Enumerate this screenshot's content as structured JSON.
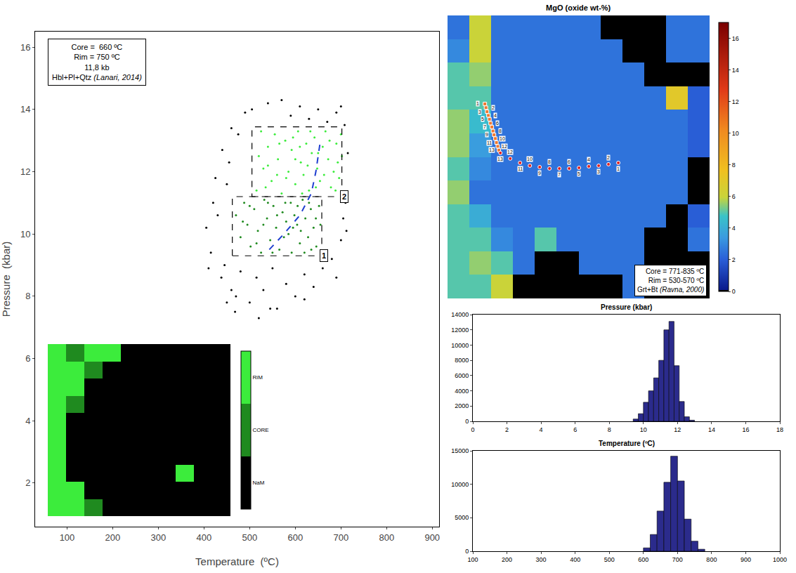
{
  "chart_data": [
    {
      "type": "scatter",
      "xlabel": "Temperature  (ºC)",
      "ylabel": "Pressure  (kbar)",
      "xlim": [
        30,
        915
      ],
      "ylim": [
        0.6,
        16.5
      ],
      "xticks": [
        100,
        200,
        300,
        400,
        500,
        600,
        700,
        800,
        900
      ],
      "yticks": [
        2,
        4,
        6,
        8,
        10,
        12,
        14,
        16
      ],
      "grid": false,
      "annotation": [
        "Core =  660 ºC",
        "Rim = 750 ºC",
        "11,8 kb",
        "Hbl+Pl+Qtz (Lanari, 2014)"
      ],
      "regions": [
        {
          "label": "1",
          "xlim": [
            462,
            658
          ],
          "ylim": [
            9.3,
            11.2
          ]
        },
        {
          "label": "2",
          "xlim": [
            505,
            702
          ],
          "ylim": [
            11.2,
            13.44
          ]
        }
      ],
      "series": [
        {
          "color": "#000000",
          "marker": "circle",
          "x": [
            405,
            415,
            420,
            430,
            438,
            445,
            450,
            455,
            460,
            468,
            475,
            480,
            490,
            500,
            505,
            515,
            520,
            530,
            540,
            550,
            560,
            570,
            580,
            590,
            600,
            610,
            620,
            630,
            640,
            650,
            660,
            670,
            680,
            690,
            700,
            705,
            710,
            712,
            708,
            715,
            700,
            440,
            460,
            425,
            470,
            620,
            545,
            410,
            690,
            450
          ],
          "y": [
            10.2,
            9.4,
            11.0,
            10.6,
            8.6,
            9.0,
            11.6,
            12.3,
            8.2,
            7.5,
            13.2,
            8.8,
            13.9,
            7.8,
            14.0,
            8.6,
            7.3,
            8.2,
            14.2,
            8.9,
            7.6,
            14.3,
            8.4,
            13.8,
            8.0,
            14.1,
            8.7,
            13.7,
            8.3,
            14.0,
            8.9,
            13.6,
            9.2,
            13.9,
            9.8,
            10.5,
            11.0,
            10.1,
            13.5,
            12.6,
            14.1,
            12.7,
            13.4,
            11.8,
            8.0,
            7.9,
            7.6,
            8.9,
            8.6,
            7.8
          ]
        },
        {
          "color": "#1f8a1f",
          "marker": "circle",
          "x": [
            470,
            480,
            488,
            495,
            502,
            510,
            518,
            525,
            532,
            538,
            545,
            552,
            558,
            565,
            572,
            578,
            585,
            592,
            598,
            604,
            610,
            616,
            622,
            628,
            634,
            640,
            646,
            652,
            500,
            530,
            560,
            590,
            620,
            645,
            515,
            575,
            605,
            635,
            485,
            550,
            595,
            655,
            540,
            580,
            612,
            630
          ],
          "y": [
            10.6,
            9.9,
            11.0,
            10.3,
            9.6,
            10.8,
            10.1,
            9.4,
            11.1,
            10.5,
            9.8,
            10.9,
            10.2,
            9.5,
            10.7,
            11.0,
            10.0,
            9.4,
            10.6,
            10.3,
            9.7,
            11.1,
            10.5,
            9.9,
            10.8,
            10.2,
            9.6,
            10.9,
            10.9,
            10.3,
            10.6,
            11.0,
            9.4,
            10.5,
            9.7,
            9.9,
            10.9,
            9.5,
            10.4,
            9.4,
            10.2,
            10.3,
            11.0,
            10.4,
            10.1,
            11.0
          ]
        },
        {
          "color": "#3cec3c",
          "marker": "circle",
          "x": [
            515,
            530,
            540,
            548,
            555,
            562,
            570,
            578,
            585,
            592,
            600,
            606,
            612,
            618,
            624,
            630,
            636,
            642,
            648,
            654,
            660,
            666,
            672,
            678,
            684,
            690,
            696,
            702,
            525,
            535,
            565,
            595,
            615,
            645,
            675,
            700,
            520,
            580,
            610,
            650,
            688,
            560,
            627,
            663,
            540,
            600,
            633,
            693
          ],
          "y": [
            11.4,
            12.1,
            12.8,
            11.7,
            13.2,
            12.4,
            11.3,
            13.0,
            12.0,
            12.7,
            11.6,
            13.3,
            12.3,
            11.9,
            12.9,
            11.4,
            12.6,
            13.1,
            12.1,
            11.7,
            12.8,
            13.3,
            12.4,
            11.5,
            12.0,
            12.9,
            11.8,
            12.5,
            13.3,
            11.5,
            12.9,
            13.1,
            11.3,
            11.5,
            13.0,
            13.2,
            12.5,
            11.8,
            12.8,
            12.6,
            11.4,
            11.9,
            12.2,
            11.9,
            12.2,
            12.4,
            13.3,
            12.3
          ]
        },
        {
          "type": "line",
          "color": "#1f3fd0",
          "line_style": "dash",
          "x": [
            543,
            575,
            610,
            635,
            645,
            654
          ],
          "y": [
            9.5,
            10.0,
            10.6,
            11.3,
            12.0,
            12.9
          ]
        }
      ]
    },
    {
      "type": "heatmap",
      "colors": [
        "#000000",
        "#1f8a1f",
        "#3cec3c"
      ],
      "zlim": [
        -0.5,
        2.5
      ],
      "zticks": [
        {
          "value": 0,
          "label": "NaM"
        },
        {
          "value": 1,
          "label": "CORE"
        },
        {
          "value": 2,
          "label": "RiM"
        }
      ],
      "z": [
        [
          2,
          1,
          2,
          2,
          0,
          0,
          0,
          0,
          0,
          0
        ],
        [
          2,
          2,
          1,
          0,
          0,
          0,
          0,
          0,
          0,
          0
        ],
        [
          2,
          2,
          0,
          0,
          0,
          0,
          0,
          0,
          0,
          0
        ],
        [
          2,
          1,
          0,
          0,
          0,
          0,
          0,
          0,
          0,
          0
        ],
        [
          2,
          0,
          0,
          0,
          0,
          0,
          0,
          0,
          0,
          0
        ],
        [
          2,
          0,
          0,
          0,
          0,
          0,
          0,
          0,
          0,
          0
        ],
        [
          2,
          0,
          0,
          0,
          0,
          0,
          0,
          0,
          0,
          0
        ],
        [
          2,
          0,
          0,
          0,
          0,
          0,
          0,
          2,
          0,
          0
        ],
        [
          2,
          2,
          0,
          0,
          0,
          0,
          0,
          0,
          0,
          0
        ],
        [
          2,
          2,
          1,
          0,
          0,
          0,
          0,
          0,
          0,
          0
        ]
      ]
    },
    {
      "type": "heatmap",
      "title": "MgO (oxide wt-%)",
      "zlim": [
        0,
        17
      ],
      "zticks": [
        0,
        2,
        4,
        6,
        8,
        10,
        12,
        14,
        16
      ],
      "annotation": [
        "Core = 771-835 ºC",
        "Rim = 530-570 ºC",
        "Grt+Bt (Ravna, 2000)"
      ],
      "z": [
        [
          2.5,
          6,
          2.5,
          2.5,
          2.5,
          2.5,
          2.5,
          0,
          0,
          0,
          2.5,
          2.5
        ],
        [
          3,
          6,
          2.5,
          2.5,
          2.5,
          2.5,
          2.5,
          2.5,
          0,
          0,
          2.5,
          2.5
        ],
        [
          5,
          5.5,
          2.5,
          2.5,
          2.5,
          2.5,
          2.5,
          2.5,
          2.5,
          0,
          0,
          0
        ],
        [
          5,
          5,
          2.5,
          2.5,
          2.5,
          2.5,
          2.5,
          2.5,
          2.5,
          2.5,
          7,
          2
        ],
        [
          5.5,
          4.5,
          2.5,
          2.5,
          2.5,
          2.5,
          2.5,
          2.5,
          2.5,
          2.5,
          2.5,
          2
        ],
        [
          5.5,
          3.5,
          2.5,
          2.5,
          2.5,
          2.5,
          2.5,
          2.5,
          2.5,
          2.5,
          2.5,
          2
        ],
        [
          5,
          3,
          2.5,
          2.5,
          2.5,
          2.5,
          2.5,
          2.5,
          2.5,
          2.5,
          2.5,
          0
        ],
        [
          5.5,
          2.5,
          2.5,
          2.5,
          2.5,
          2.5,
          2.5,
          2.5,
          2.5,
          2.5,
          2.5,
          0
        ],
        [
          5,
          4,
          2.5,
          2.5,
          2.5,
          2.5,
          2.5,
          2.5,
          2.5,
          2.5,
          0,
          2
        ],
        [
          5,
          5,
          3,
          2.5,
          5,
          2.5,
          2.5,
          2.5,
          2.5,
          0,
          0,
          2.5
        ],
        [
          5,
          5.5,
          5,
          2.5,
          0,
          0,
          2.5,
          2.5,
          2.5,
          0,
          0,
          0
        ],
        [
          5,
          5,
          6,
          0,
          0,
          0,
          0,
          0,
          2.5,
          0,
          0,
          0
        ]
      ],
      "traverses": [
        {
          "color": "#f07830",
          "marker": "square",
          "labels": [
            "1",
            "2",
            "3",
            "4",
            "5",
            "6",
            "7",
            "8",
            "9",
            "10",
            "11",
            "12",
            "13"
          ],
          "x": [
            1.21,
            1.26,
            1.31,
            1.37,
            1.42,
            1.47,
            1.53,
            1.58,
            1.63,
            1.69,
            1.74,
            1.8,
            1.85
          ],
          "y": [
            3.25,
            3.41,
            3.58,
            3.74,
            3.9,
            4.07,
            4.23,
            4.4,
            4.56,
            4.72,
            4.89,
            5.05,
            5.21
          ]
        },
        {
          "color": "#e02020",
          "marker": "circle",
          "labels": [
            "1",
            "2",
            "3",
            "4",
            "5",
            "6",
            "7",
            "8",
            "9",
            "10",
            "11",
            "12",
            "13"
          ],
          "x": [
            7.32,
            6.87,
            6.42,
            5.97,
            5.52,
            5.07,
            4.62,
            4.17,
            3.72,
            3.27,
            2.82,
            2.37,
            1.92
          ],
          "y": [
            5.75,
            5.81,
            5.87,
            5.9,
            5.96,
            5.99,
            5.99,
            5.99,
            5.93,
            5.87,
            5.75,
            5.57,
            5.33
          ]
        }
      ]
    },
    {
      "type": "histogram",
      "title": "Pressure (kbar)",
      "color": "#2b2b8c",
      "bins": [
        9.4,
        9.7,
        10.0,
        10.3,
        10.6,
        10.9,
        11.2,
        11.5,
        11.8,
        12.1,
        12.4,
        12.7,
        13.0
      ],
      "values": [
        300,
        1000,
        2500,
        4000,
        5700,
        8000,
        12000,
        13100,
        7300,
        2600,
        600,
        150
      ],
      "xlim": [
        0,
        18
      ],
      "xticks": [
        0,
        2,
        4,
        6,
        8,
        10,
        12,
        14,
        16,
        18
      ],
      "ylim": [
        0,
        14000
      ],
      "yticks": [
        0,
        2000,
        4000,
        6000,
        8000,
        10000,
        12000,
        14000
      ]
    },
    {
      "type": "histogram",
      "title": "Temperature (ºC)",
      "color": "#2b2b8c",
      "bins": [
        600,
        620,
        640,
        660,
        680,
        700,
        720,
        740,
        760,
        780
      ],
      "values": [
        500,
        2500,
        6000,
        10300,
        14200,
        10500,
        4800,
        1500,
        300
      ],
      "xlim": [
        100,
        1000
      ],
      "xticks": [
        100,
        200,
        300,
        400,
        500,
        600,
        700,
        800,
        900,
        1000
      ],
      "ylim": [
        0,
        15000
      ],
      "yticks": [
        0,
        5000,
        10000,
        15000
      ]
    }
  ]
}
